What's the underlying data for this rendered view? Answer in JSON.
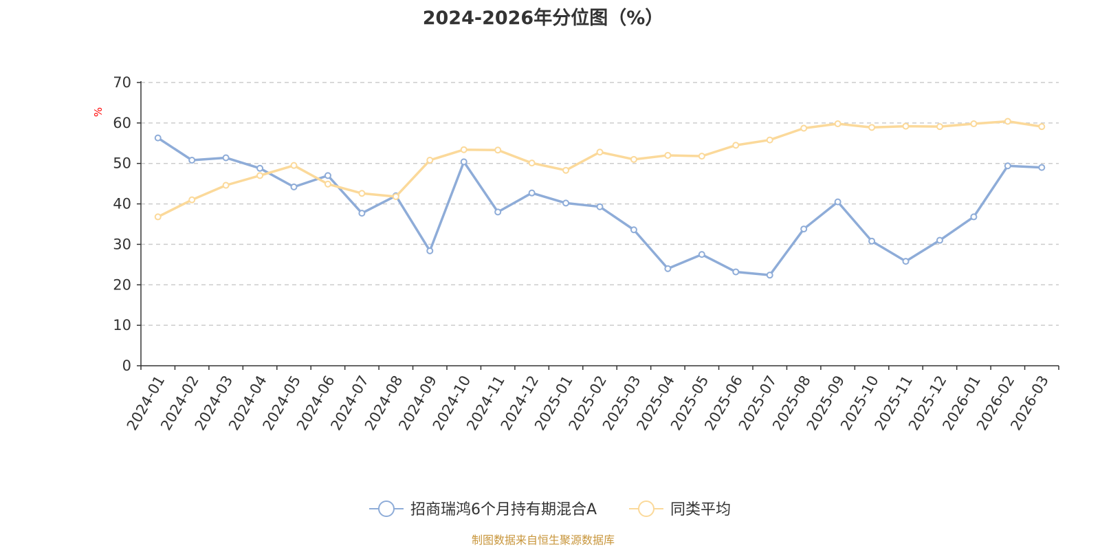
{
  "chart_data": {
    "type": "line",
    "title": "2024-2026年分位图（%）",
    "ylabel": "%",
    "xlabel": "",
    "ylim": [
      0,
      70
    ],
    "yticks": [
      0,
      10,
      20,
      30,
      40,
      50,
      60,
      70
    ],
    "grid": true,
    "legend_position": "bottom",
    "categories": [
      "2024-01",
      "2024-02",
      "2024-03",
      "2024-04",
      "2024-05",
      "2024-06",
      "2024-07",
      "2024-08",
      "2024-09",
      "2024-10",
      "2024-11",
      "2024-12",
      "2025-01",
      "2025-02",
      "2025-03",
      "2025-04",
      "2025-05",
      "2025-06",
      "2025-07",
      "2025-08",
      "2025-09",
      "2025-10",
      "2025-11",
      "2025-12",
      "2026-01",
      "2026-02",
      "2026-03"
    ],
    "series": [
      {
        "name": "招商瑞鸿6个月持有期混合A",
        "color": "#8eacd8",
        "values": [
          56.3,
          50.8,
          51.4,
          48.8,
          44.2,
          47.0,
          37.7,
          42.0,
          28.4,
          50.4,
          38.0,
          42.7,
          40.2,
          39.3,
          33.6,
          24.0,
          27.5,
          23.2,
          22.4,
          33.8,
          40.5,
          30.8,
          25.8,
          31.0,
          36.8,
          49.4,
          49.0
        ]
      },
      {
        "name": "同类平均",
        "color": "#fbd99a",
        "values": [
          36.8,
          41.0,
          44.6,
          47.0,
          49.5,
          44.9,
          42.6,
          41.8,
          50.8,
          53.4,
          53.3,
          50.1,
          48.3,
          52.8,
          51.0,
          52.0,
          51.8,
          54.5,
          55.8,
          58.7,
          59.8,
          58.9,
          59.2,
          59.1,
          59.8,
          60.4,
          59.1
        ]
      }
    ]
  },
  "source_text": "制图数据来自恒生聚源数据库"
}
